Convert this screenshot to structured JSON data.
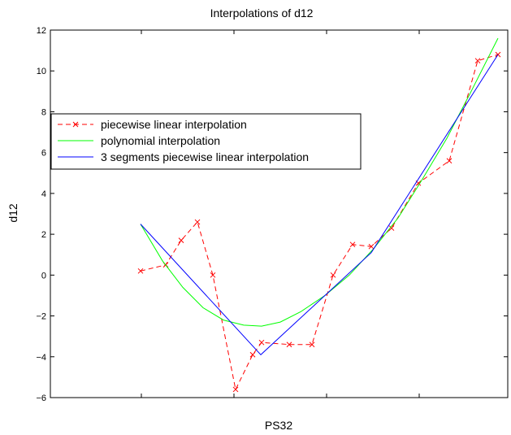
{
  "chart_data": {
    "type": "line",
    "title": "Interpolations of d12",
    "xlabel": "PS32",
    "ylabel": "d12",
    "ylim": [
      -6,
      12
    ],
    "yticks": [
      -6,
      -4,
      -2,
      0,
      2,
      4,
      6,
      8,
      10,
      12
    ],
    "ytick_labels": [
      "−6",
      "−4",
      "−2",
      "0",
      "2",
      "4",
      "6",
      "8",
      "10",
      "12"
    ],
    "x_tick_labels_visible": false,
    "grid": false,
    "legend_placement": "upper-left",
    "series": [
      {
        "name": "piecewise linear interpolation",
        "color": "#ff0000",
        "style": "dashed",
        "marker": "x",
        "x": [
          173,
          204,
          223,
          243,
          262,
          290,
          311,
          322,
          356,
          384,
          410,
          434,
          457,
          482,
          515,
          553,
          588,
          613
        ],
        "y": [
          0.2,
          0.5,
          1.7,
          2.6,
          0.0,
          -5.6,
          -3.9,
          -3.3,
          -3.4,
          -3.4,
          0.0,
          1.5,
          1.4,
          2.3,
          4.5,
          5.6,
          10.5,
          10.8
        ]
      },
      {
        "name": "polynomial interpolation",
        "color": "#00ff00",
        "style": "solid",
        "marker": "none",
        "x": [
          173,
          200,
          225,
          250,
          275,
          300,
          322,
          345,
          370,
          400,
          430,
          460,
          490,
          520,
          550,
          580,
          613
        ],
        "y": [
          2.5,
          0.7,
          -0.6,
          -1.6,
          -2.2,
          -2.45,
          -2.5,
          -2.3,
          -1.8,
          -1.0,
          0.0,
          1.3,
          2.8,
          4.7,
          6.7,
          9.0,
          11.6
        ]
      },
      {
        "name": "3 segments piecewise linear interpolation",
        "color": "#0000ff",
        "style": "solid",
        "marker": "none",
        "x": [
          173,
          321,
          457,
          613
        ],
        "y": [
          2.5,
          -3.9,
          1.1,
          10.8
        ]
      }
    ]
  }
}
